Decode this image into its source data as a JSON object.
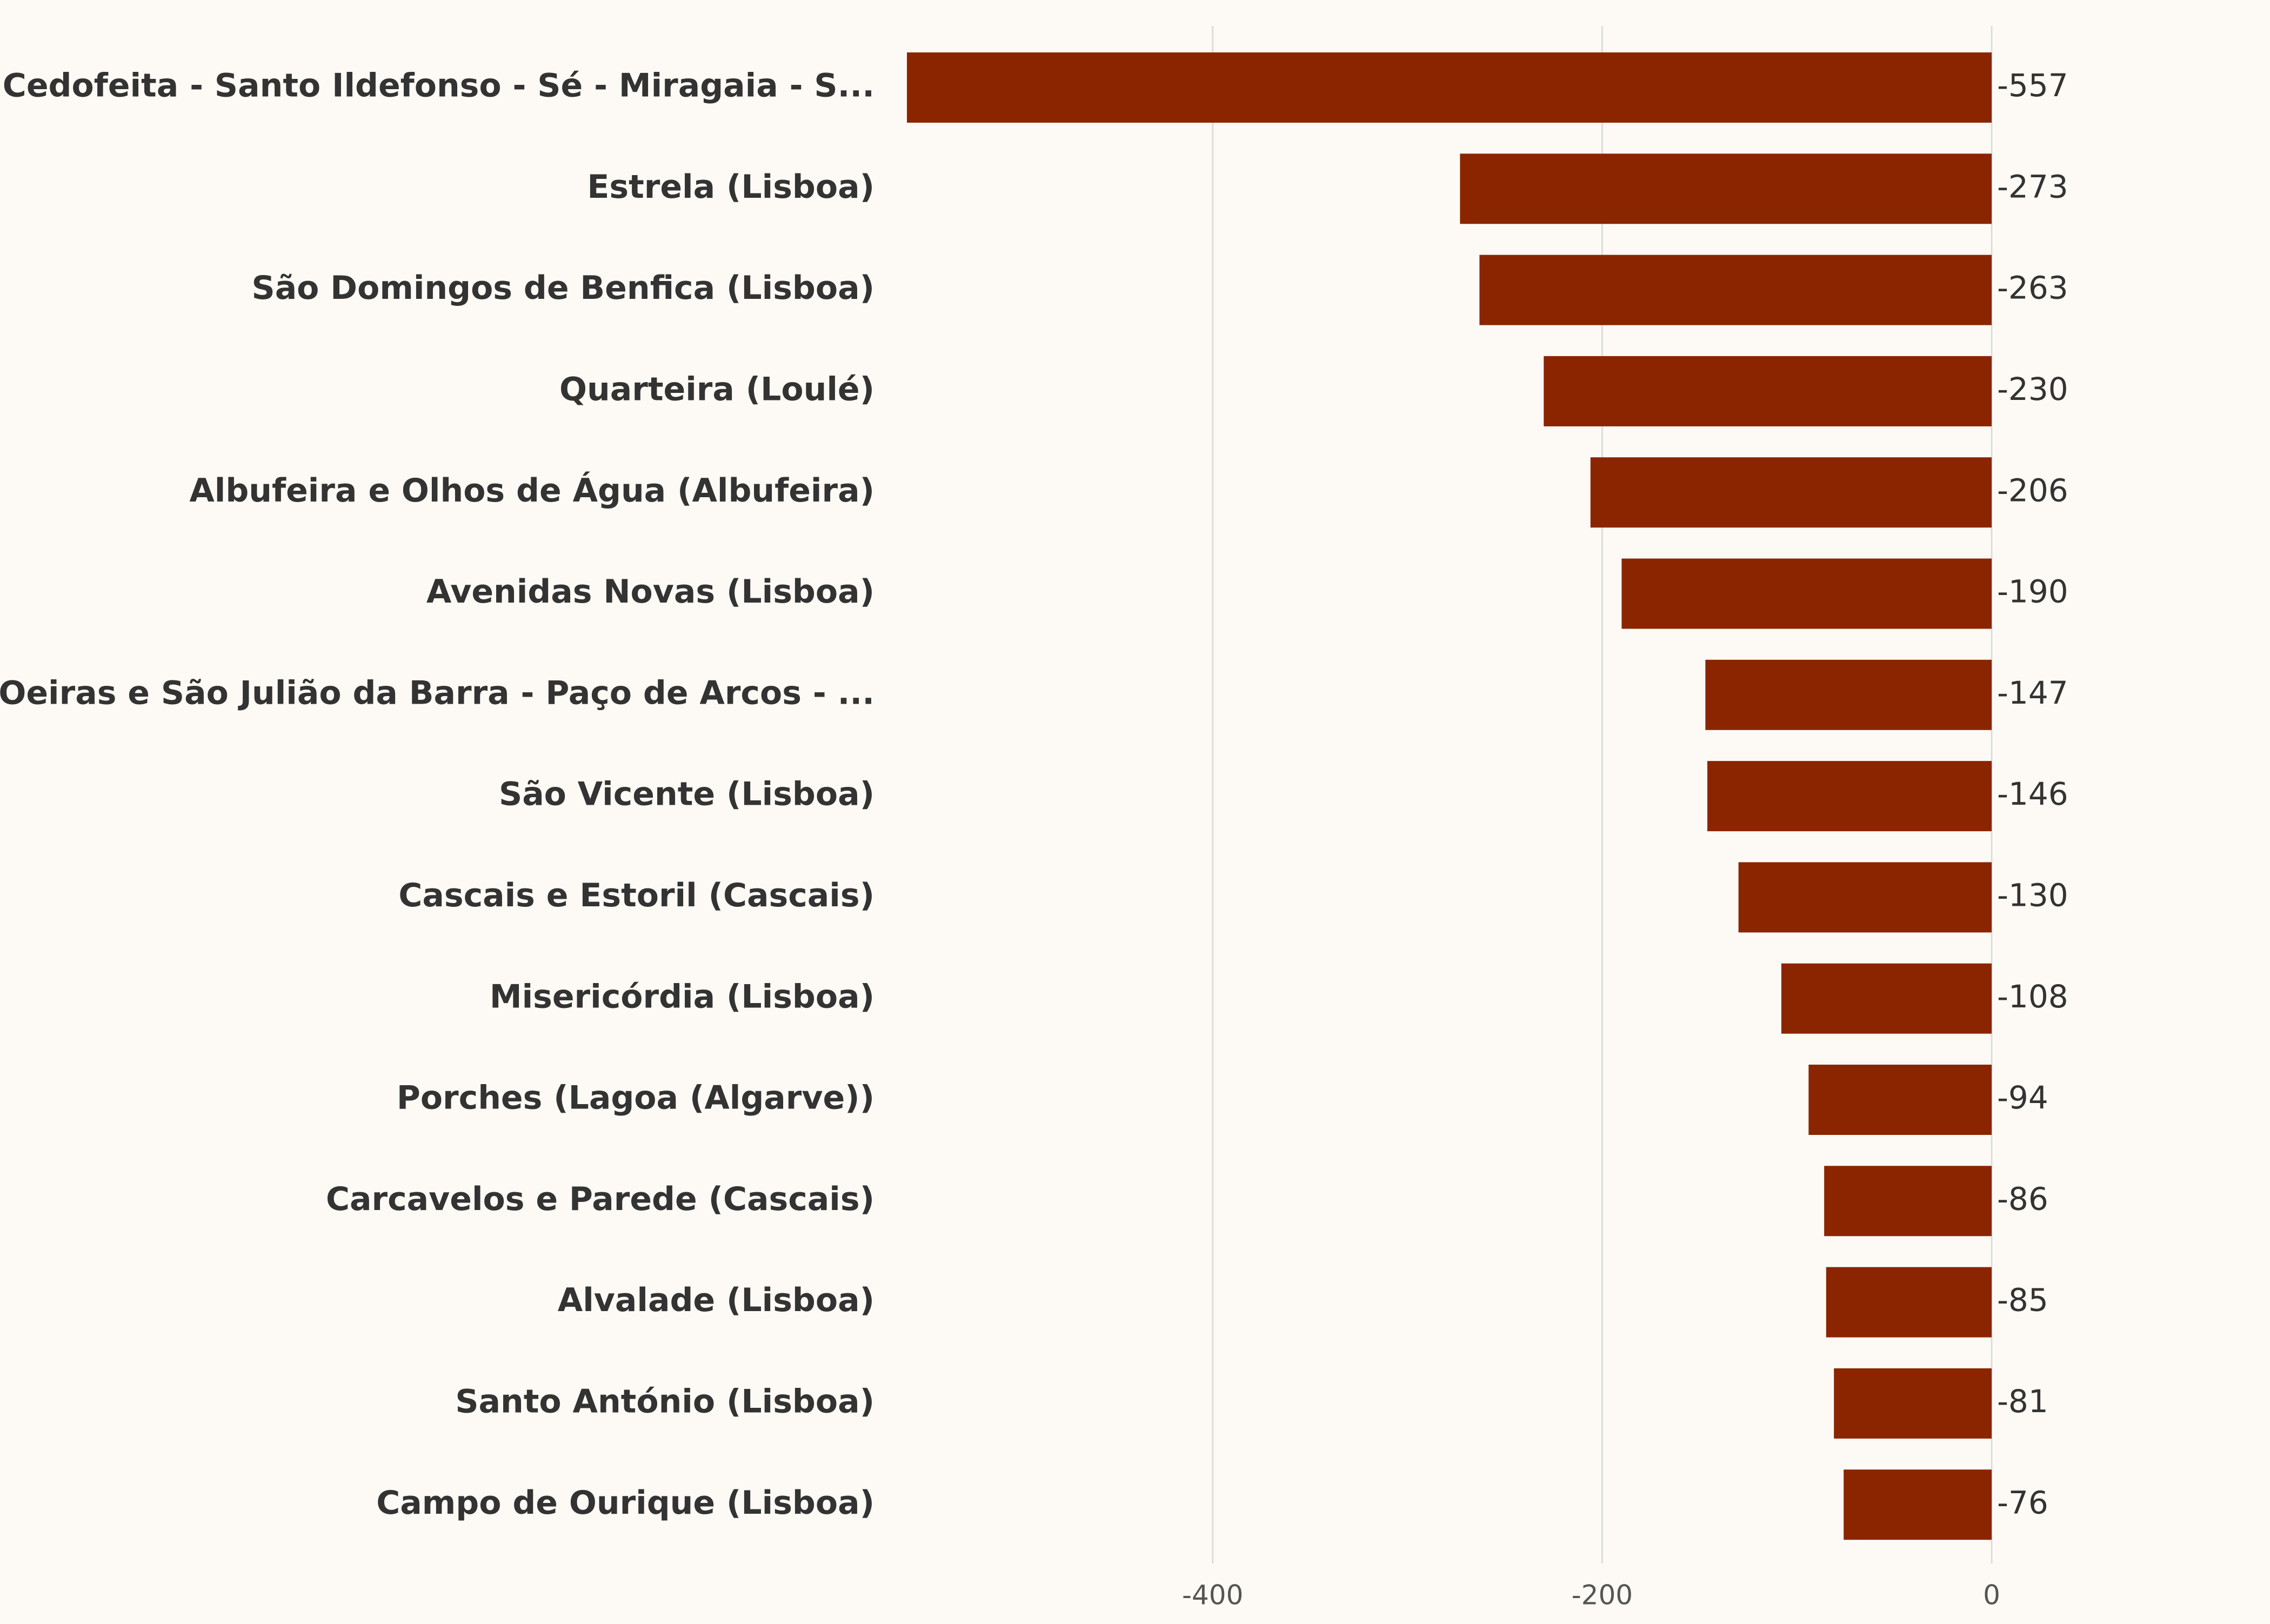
{
  "colors": {
    "background": "#fdfaf5",
    "bar": "#8b2500",
    "text": "#333333",
    "grid": "#dcdcdc"
  },
  "chart_data": {
    "type": "bar",
    "orientation": "horizontal",
    "title": "",
    "xlabel": "",
    "ylabel": "",
    "categories": [
      "Cedofeita - Santo Ildefonso - Sé - Miragaia - S...",
      "Estrela (Lisboa)",
      "São Domingos de Benfica (Lisboa)",
      "Quarteira (Loulé)",
      "Albufeira e Olhos de Água (Albufeira)",
      "Avenidas Novas (Lisboa)",
      "Oeiras e São Julião da Barra - Paço de Arcos - ...",
      "São Vicente (Lisboa)",
      "Cascais e Estoril (Cascais)",
      "Misericórdia (Lisboa)",
      "Porches (Lagoa (Algarve))",
      "Carcavelos e Parede (Cascais)",
      "Alvalade (Lisboa)",
      "Santo António (Lisboa)",
      "Campo de Ourique (Lisboa)"
    ],
    "values": [
      -557,
      -273,
      -263,
      -230,
      -206,
      -190,
      -147,
      -146,
      -130,
      -108,
      -94,
      -86,
      -85,
      -81,
      -76
    ],
    "value_labels": [
      "-557",
      "-273",
      "-263",
      "-230",
      "-206",
      "-190",
      "-147",
      "-146",
      "-130",
      "-108",
      "-94",
      "-86",
      "-85",
      "-81",
      "-76"
    ],
    "xlim": [
      -557,
      0
    ],
    "xticks": [
      -400,
      -200,
      0
    ],
    "xtick_labels": [
      "-400",
      "-200",
      "0"
    ],
    "grid": true,
    "legend": "none"
  }
}
